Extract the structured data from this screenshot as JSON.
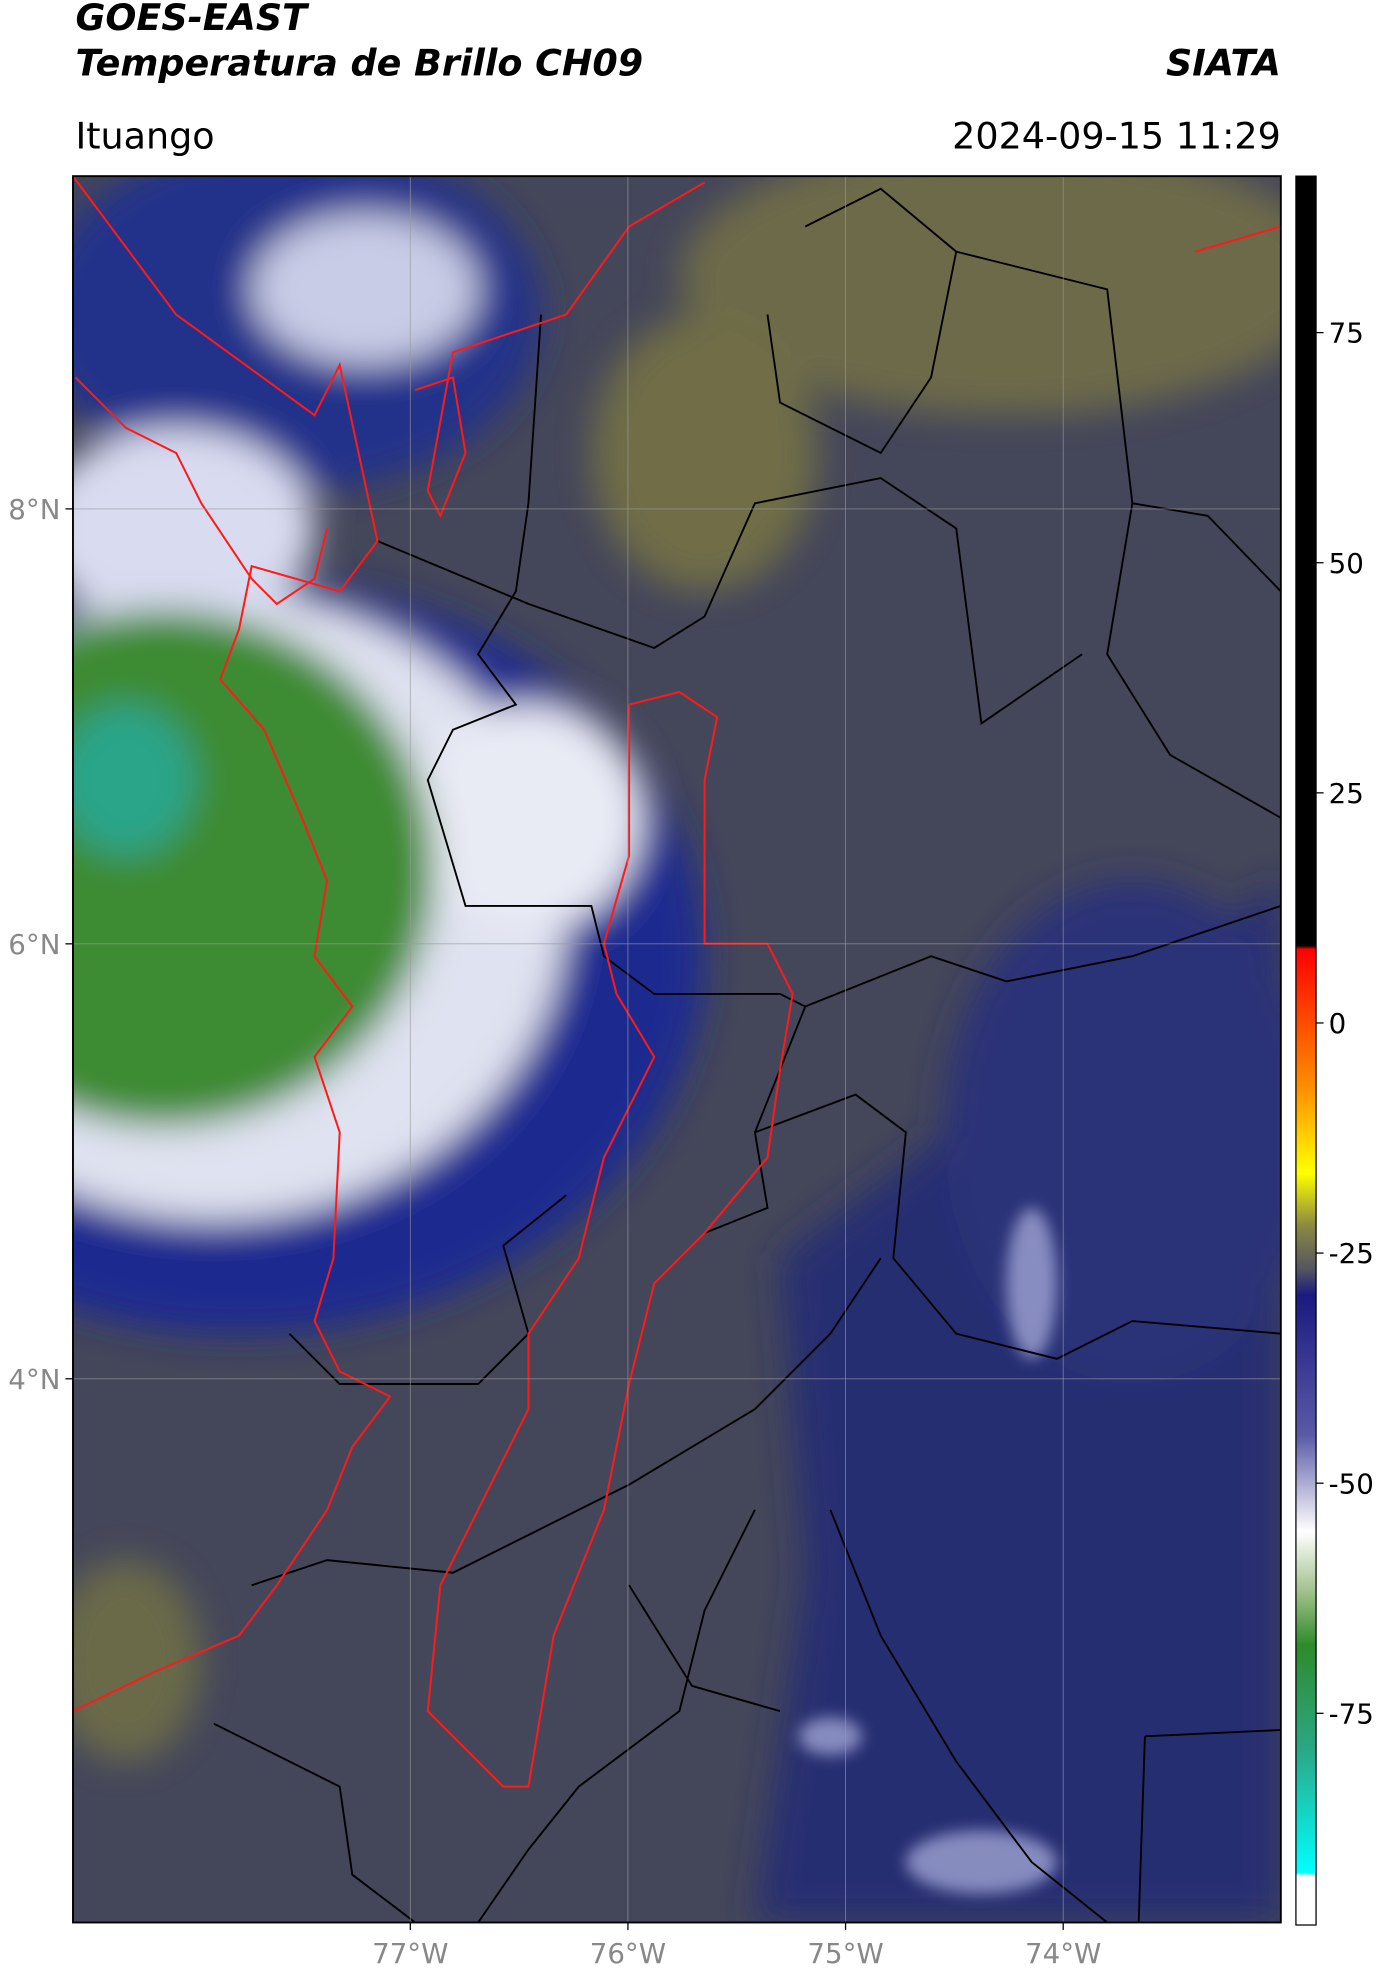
{
  "header": {
    "title": "GOES-EAST",
    "subtitle": "Temperatura de Brillo CH09",
    "source": "SIATA",
    "region": "Ituango",
    "datetime": "2024-09-15 11:29"
  },
  "map": {
    "lonlim": [
      -78.55,
      -73.0
    ],
    "latlim": [
      1.5,
      9.53
    ],
    "lonticks": [
      {
        "value": -77,
        "label": "77°W"
      },
      {
        "value": -76,
        "label": "76°W"
      },
      {
        "value": -75,
        "label": "75°W"
      },
      {
        "value": -74,
        "label": "74°W"
      }
    ],
    "latticks": [
      {
        "value": 8,
        "label": "8°N"
      },
      {
        "value": 6,
        "label": "6°N"
      },
      {
        "value": 4,
        "label": "4°N"
      }
    ],
    "grid": true
  },
  "colorbar": {
    "lim": [
      -98,
      92
    ],
    "ticks": [
      75,
      50,
      25,
      0,
      -25,
      -50,
      -75
    ]
  }
}
